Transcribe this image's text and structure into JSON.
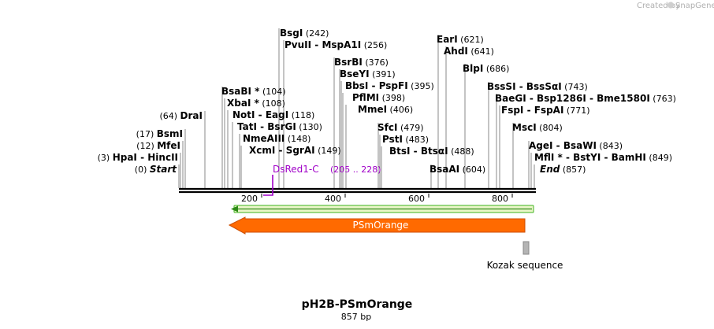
{
  "watermark": {
    "prefix": "Created by",
    "brand": "SnapGene"
  },
  "map": {
    "title": "pH2B-PSmOrange",
    "length_label": "857 bp",
    "length": 857
  },
  "enzymes": [
    {
      "id": "sites_0",
      "name": "Start",
      "italic": true,
      "pos": "(0)",
      "site": 0
    },
    {
      "id": "sites_3",
      "parts": [
        "HpaI",
        "HincII"
      ],
      "pos": "(3)",
      "site": 3
    },
    {
      "id": "sites_12",
      "name": "MfeI",
      "pos": "(12)",
      "site": 12
    },
    {
      "id": "sites_17",
      "name": "BsmI",
      "pos": "(17)",
      "site": 17
    },
    {
      "id": "sites_64",
      "name": "DraI",
      "pos": "(64)",
      "site": 64
    },
    {
      "id": "sites_104",
      "name": "BsaBI *",
      "pos": "(104)",
      "site": 104
    },
    {
      "id": "sites_108",
      "name": "XbaI *",
      "pos": "(108)",
      "site": 108
    },
    {
      "id": "sites_118",
      "parts": [
        "NotI",
        "EagI"
      ],
      "pos": "(118)",
      "site": 118
    },
    {
      "id": "sites_130",
      "parts": [
        "TatI",
        "BsrGI"
      ],
      "pos": "(130)",
      "site": 130
    },
    {
      "id": "sites_148",
      "name": "NmeAIII",
      "pos": "(148)",
      "site": 148
    },
    {
      "id": "sites_149",
      "parts": [
        "XcmI",
        "SgrAI"
      ],
      "pos": "(149)",
      "site": 149
    },
    {
      "id": "sites_242",
      "name": "BsgI",
      "pos": "(242)",
      "site": 242
    },
    {
      "id": "sites_256",
      "parts": [
        "PvuII",
        "MspA1I"
      ],
      "pos": "(256)",
      "site": 256
    },
    {
      "id": "sites_376",
      "name": "BsrBI",
      "pos": "(376)",
      "site": 376
    },
    {
      "id": "sites_391",
      "name": "BseYI",
      "pos": "(391)",
      "site": 391
    },
    {
      "id": "sites_395",
      "parts": [
        "BbsI",
        "PspFI"
      ],
      "pos": "(395)",
      "site": 395
    },
    {
      "id": "sites_398",
      "name": "PflMI",
      "pos": "(398)",
      "site": 398
    },
    {
      "id": "sites_406",
      "name": "MmeI",
      "pos": "(406)",
      "site": 406
    },
    {
      "id": "sites_479",
      "name": "SfcI",
      "pos": "(479)",
      "site": 479
    },
    {
      "id": "sites_483",
      "name": "PstI",
      "pos": "(483)",
      "site": 483
    },
    {
      "id": "sites_488",
      "parts": [
        "BtsI",
        "BtsαI"
      ],
      "pos": "(488)",
      "site": 488
    },
    {
      "id": "sites_604",
      "name": "BsaAI",
      "pos": "(604)",
      "site": 604
    },
    {
      "id": "sites_621",
      "name": "EarI",
      "pos": "(621)",
      "site": 621
    },
    {
      "id": "sites_641",
      "name": "AhdI",
      "pos": "(641)",
      "site": 641
    },
    {
      "id": "sites_686",
      "name": "BlpI",
      "pos": "(686)",
      "site": 686
    },
    {
      "id": "sites_743",
      "parts": [
        "BssSI",
        "BssSαI"
      ],
      "pos": "(743)",
      "site": 743
    },
    {
      "id": "sites_763",
      "parts": [
        "BaeGI",
        "Bsp1286I",
        "Bme1580I"
      ],
      "pos": "(763)",
      "site": 763
    },
    {
      "id": "sites_771",
      "parts": [
        "FspI",
        "FspAI"
      ],
      "pos": "(771)",
      "site": 771
    },
    {
      "id": "sites_804",
      "name": "MscI",
      "pos": "(804)",
      "site": 804
    },
    {
      "id": "sites_843",
      "parts": [
        "AgeI",
        "BsaWI"
      ],
      "pos": "(843)",
      "site": 843
    },
    {
      "id": "sites_849",
      "parts": [
        "MflI *",
        "BstYI",
        "BamHI"
      ],
      "pos": "(849)",
      "site": 849
    },
    {
      "id": "sites_857",
      "name": "End",
      "italic": true,
      "pos": "(857)",
      "site": 857
    }
  ],
  "ruler": {
    "ticks": [
      "200",
      "400",
      "600",
      "800"
    ],
    "tick_values": [
      200,
      400,
      600,
      800
    ]
  },
  "primer": {
    "name": "DsRed1-C",
    "range": "(205 .. 228)",
    "start": 205,
    "end": 228,
    "color": "#a000c8"
  },
  "orf": {
    "direction": "reverse",
    "color": "#3cb31e",
    "fill": "#eaf6c8"
  },
  "features": [
    {
      "name": "PSmOrange",
      "color": "#ff6a00",
      "direction": "reverse"
    },
    {
      "name": "Kozak sequence",
      "color": "#b4b4b4"
    }
  ]
}
